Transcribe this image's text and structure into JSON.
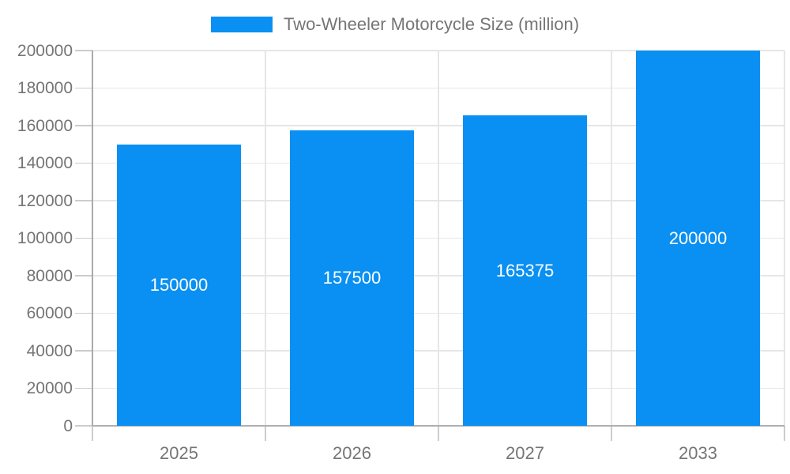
{
  "chart_data": {
    "type": "bar",
    "title": "",
    "legend_entries": [
      {
        "label": "Two-Wheeler Motorcycle Size (million)",
        "color": "#0990f2"
      }
    ],
    "legend_position": "top",
    "categories": [
      "2025",
      "2026",
      "2027",
      "2033"
    ],
    "series": [
      {
        "name": "Two-Wheeler Motorcycle Size (million)",
        "values": [
          150000,
          157500,
          165375,
          200000
        ]
      }
    ],
    "bar_value_labels": [
      "150000",
      "157500",
      "165375",
      "200000"
    ],
    "xlabel": "",
    "ylabel": "",
    "ylim": [
      0,
      200000
    ],
    "ytick_step": 20000,
    "ytick_labels": [
      "0",
      "20000",
      "40000",
      "60000",
      "80000",
      "100000",
      "120000",
      "140000",
      "160000",
      "180000",
      "200000"
    ],
    "grid": true,
    "colors": {
      "bar": "#0990f2",
      "bar_label_text": "#ffffff",
      "axis_text": "#757575",
      "gridline": "#e6e6e6",
      "tick": "#cccccc",
      "axis_line": "#b0b0b0",
      "background": "#ffffff"
    }
  }
}
